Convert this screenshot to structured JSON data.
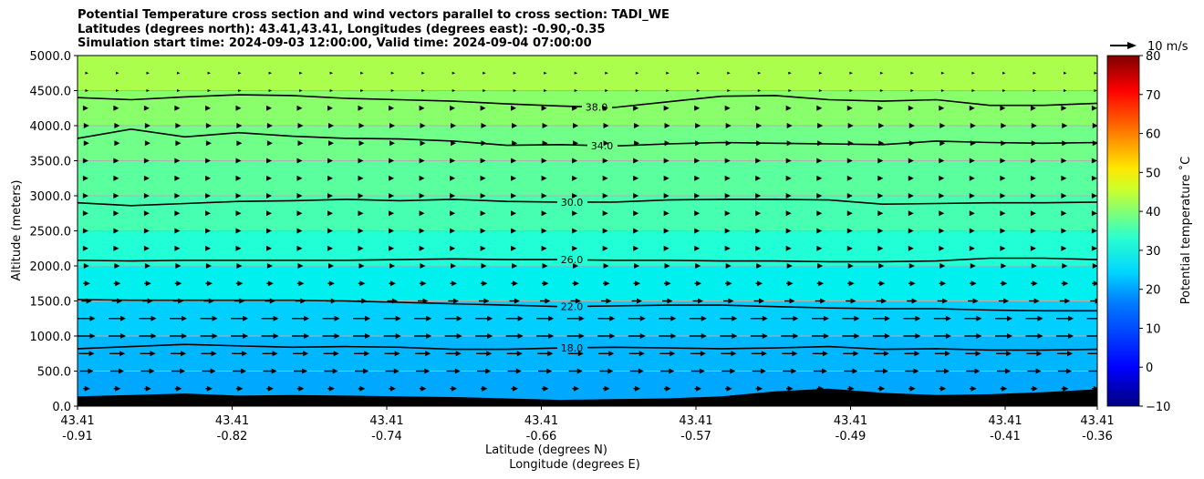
{
  "title_lines": [
    "Potential Temperature cross section and wind vectors parallel to cross section: TADI_WE",
    "Latitudes (degrees north): 43.41,43.41, Longitudes (degrees east): -0.90,-0.35",
    "Simulation start time: 2024-09-03 12:00:00, Valid time: 2024-09-04 07:00:00"
  ],
  "chart_data": {
    "type": "contour",
    "ylabel": "Altitude (meters)",
    "xlabel_lines": [
      "Latitude (degrees N)",
      "Longitude (degrees E)"
    ],
    "ylim": [
      0,
      5000
    ],
    "y_ticks": [
      "0.0",
      "500.0",
      "1000.0",
      "1500.0",
      "2000.0",
      "2500.0",
      "3000.0",
      "3500.0",
      "4000.0",
      "4500.0",
      "5000.0"
    ],
    "x_ticks": [
      {
        "lat": "43.41",
        "lon": "-0.91"
      },
      {
        "lat": "43.41",
        "lon": "-0.82"
      },
      {
        "lat": "43.41",
        "lon": "-0.74"
      },
      {
        "lat": "43.41",
        "lon": "-0.66"
      },
      {
        "lat": "43.41",
        "lon": "-0.57"
      },
      {
        "lat": "43.41",
        "lon": "-0.49"
      },
      {
        "lat": "43.41",
        "lon": "-0.41"
      },
      {
        "lat": "43.41",
        "lon": "-0.36"
      }
    ],
    "grid_horizontal": true,
    "colorbar": {
      "label": "Potential temperature $^\\circ$C",
      "label_text": "Potential temperature ˚C",
      "range": [
        -10,
        80
      ],
      "ticks": [
        "−10",
        "0",
        "10",
        "20",
        "30",
        "40",
        "50",
        "60",
        "70",
        "80"
      ]
    },
    "quiver_key": "10 m/s",
    "contours": [
      {
        "level": "18.0",
        "altitudes": [
          820,
          850,
          880,
          860,
          840,
          850,
          840,
          810,
          810,
          830,
          840,
          830,
          820,
          830,
          850,
          810,
          820,
          800,
          800,
          810
        ]
      },
      {
        "level": "22.0",
        "altitudes": [
          1520,
          1510,
          1510,
          1510,
          1510,
          1500,
          1480,
          1460,
          1440,
          1420,
          1430,
          1440,
          1440,
          1420,
          1400,
          1390,
          1390,
          1370,
          1360,
          1360
        ]
      },
      {
        "level": "26.0",
        "altitudes": [
          2080,
          2070,
          2080,
          2080,
          2080,
          2080,
          2090,
          2100,
          2090,
          2090,
          2080,
          2080,
          2070,
          2070,
          2060,
          2060,
          2070,
          2110,
          2110,
          2090
        ]
      },
      {
        "level": "30.0",
        "altitudes": [
          2900,
          2860,
          2890,
          2920,
          2930,
          2950,
          2930,
          2950,
          2920,
          2910,
          2910,
          2940,
          2950,
          2950,
          2940,
          2880,
          2890,
          2900,
          2900,
          2910
        ]
      },
      {
        "level": "34.0",
        "altitudes": [
          3820,
          3950,
          3840,
          3900,
          3850,
          3820,
          3810,
          3780,
          3720,
          3730,
          3710,
          3740,
          3760,
          3750,
          3740,
          3730,
          3780,
          3760,
          3750,
          3760
        ]
      },
      {
        "level": "38.0",
        "altitudes": [
          4400,
          4370,
          4410,
          4440,
          4430,
          4390,
          4370,
          4350,
          4310,
          4280,
          4260,
          4340,
          4420,
          4430,
          4370,
          4350,
          4370,
          4290,
          4290,
          4320
        ]
      }
    ],
    "terrain_altitudes": [
      140,
      160,
      180,
      150,
      160,
      150,
      140,
      130,
      110,
      90,
      100,
      110,
      140,
      210,
      250,
      190,
      160,
      170,
      200,
      240
    ],
    "wind_rows": [
      {
        "altitude": 250,
        "speed": 4
      },
      {
        "altitude": 500,
        "speed": 8
      },
      {
        "altitude": 750,
        "speed": 9
      },
      {
        "altitude": 1000,
        "speed": 10
      },
      {
        "altitude": 1250,
        "speed": 10
      },
      {
        "altitude": 1500,
        "speed": 6
      },
      {
        "altitude": 1750,
        "speed": 4
      },
      {
        "altitude": 2000,
        "speed": 3
      },
      {
        "altitude": 2250,
        "speed": 2
      },
      {
        "altitude": 2500,
        "speed": 2
      },
      {
        "altitude": 2750,
        "speed": 2
      },
      {
        "altitude": 3000,
        "speed": 2
      },
      {
        "altitude": 3250,
        "speed": 2
      },
      {
        "altitude": 3500,
        "speed": 2
      },
      {
        "altitude": 3750,
        "speed": 3
      },
      {
        "altitude": 4000,
        "speed": 3
      },
      {
        "altitude": 4250,
        "speed": 2
      },
      {
        "altitude": 4500,
        "speed": 1
      },
      {
        "altitude": 4750,
        "speed": 1
      }
    ],
    "colors": {
      "band_0_500": "#00a9ff",
      "band_500_1000": "#00b7ff",
      "band_1000_1500": "#00cfff",
      "band_1500_2000": "#00f0f0",
      "band_2000_2500": "#20ffd5",
      "band_2500_3000": "#47ffb0",
      "band_3000_3500": "#5aff9e",
      "band_3500_4000": "#70ff88",
      "band_4000_4500": "#8aff6c",
      "band_4500_5000": "#abff4c",
      "terrain": "#000000",
      "grid": "#b0b0b0"
    }
  }
}
